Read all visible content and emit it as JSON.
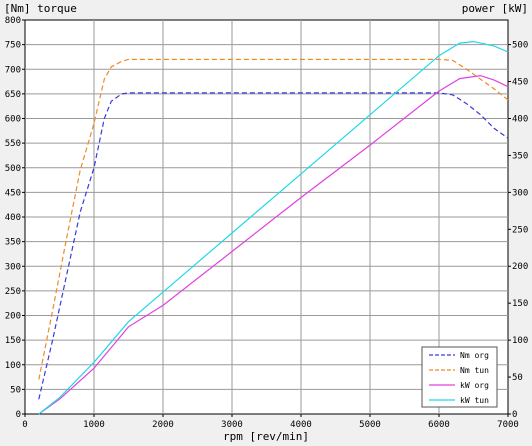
{
  "chart_data": {
    "type": "line",
    "title": "",
    "left_axis_label": "[Nm] torque",
    "right_axis_label": "power [kW]",
    "xlabel": "rpm [rev/min]",
    "xlim": [
      0,
      7000
    ],
    "ylim_left": [
      0,
      800
    ],
    "ylim_right": [
      0,
      533.3
    ],
    "x_ticks": [
      0,
      1000,
      2000,
      3000,
      4000,
      5000,
      6000,
      7000
    ],
    "y_left_ticks": [
      0,
      50,
      100,
      150,
      200,
      250,
      300,
      350,
      400,
      450,
      500,
      550,
      600,
      650,
      700,
      750,
      800
    ],
    "y_right_ticks": [
      0,
      50,
      100,
      150,
      200,
      250,
      300,
      350,
      400,
      450,
      500
    ],
    "grid": true,
    "legend_position": "bottom-right",
    "series": [
      {
        "name": "Nm org",
        "axis": "left",
        "color": "#3a3adc",
        "dash": true,
        "points": [
          [
            200,
            30
          ],
          [
            400,
            150
          ],
          [
            600,
            280
          ],
          [
            800,
            410
          ],
          [
            1000,
            500
          ],
          [
            1150,
            600
          ],
          [
            1250,
            635
          ],
          [
            1400,
            650
          ],
          [
            1500,
            652
          ],
          [
            2000,
            652
          ],
          [
            3000,
            652
          ],
          [
            4000,
            652
          ],
          [
            5000,
            652
          ],
          [
            6000,
            652
          ],
          [
            6200,
            648
          ],
          [
            6400,
            630
          ],
          [
            6600,
            608
          ],
          [
            6800,
            580
          ],
          [
            7000,
            560
          ]
        ]
      },
      {
        "name": "Nm tun",
        "axis": "left",
        "color": "#f08a28",
        "dash": true,
        "points": [
          [
            200,
            70
          ],
          [
            400,
            210
          ],
          [
            600,
            355
          ],
          [
            800,
            495
          ],
          [
            1000,
            590
          ],
          [
            1150,
            680
          ],
          [
            1250,
            705
          ],
          [
            1400,
            716
          ],
          [
            1500,
            720
          ],
          [
            2000,
            720
          ],
          [
            3000,
            720
          ],
          [
            4000,
            720
          ],
          [
            5000,
            720
          ],
          [
            6000,
            720
          ],
          [
            6200,
            718
          ],
          [
            6400,
            700
          ],
          [
            6600,
            680
          ],
          [
            6800,
            660
          ],
          [
            7000,
            638
          ]
        ]
      },
      {
        "name": "kW org",
        "axis": "right",
        "color": "#e040e0",
        "dash": false,
        "points": [
          [
            200,
            0
          ],
          [
            500,
            20
          ],
          [
            1000,
            62
          ],
          [
            1500,
            118
          ],
          [
            2000,
            147
          ],
          [
            3000,
            220
          ],
          [
            4000,
            293
          ],
          [
            5000,
            364
          ],
          [
            6000,
            437
          ],
          [
            6300,
            454
          ],
          [
            6600,
            458
          ],
          [
            6800,
            452
          ],
          [
            7000,
            443
          ]
        ]
      },
      {
        "name": "kW tun",
        "axis": "right",
        "color": "#20d8e8",
        "dash": false,
        "points": [
          [
            200,
            0
          ],
          [
            500,
            22
          ],
          [
            1000,
            70
          ],
          [
            1500,
            125
          ],
          [
            2000,
            165
          ],
          [
            3000,
            245
          ],
          [
            4000,
            325
          ],
          [
            5000,
            405
          ],
          [
            6000,
            485
          ],
          [
            6300,
            502
          ],
          [
            6500,
            504
          ],
          [
            6800,
            498
          ],
          [
            7000,
            490
          ]
        ]
      }
    ]
  }
}
